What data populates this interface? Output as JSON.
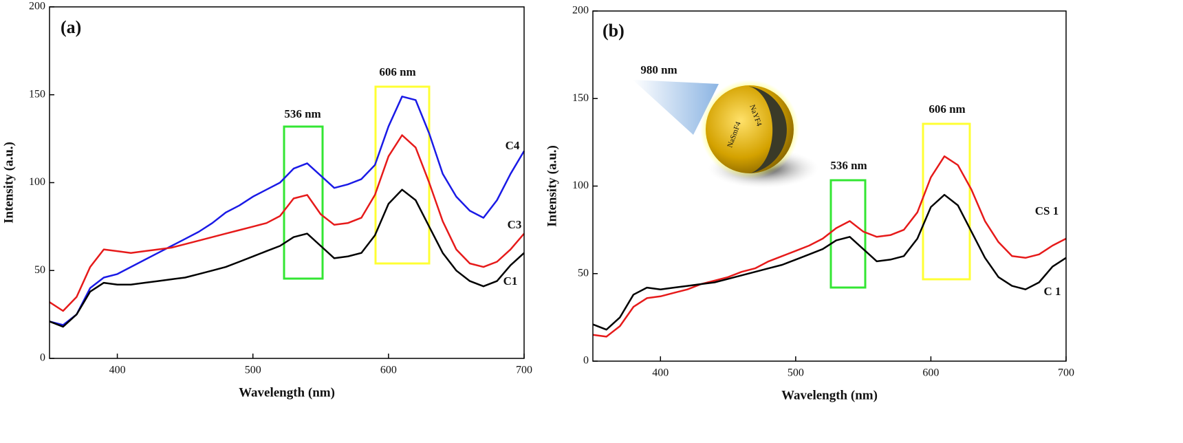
{
  "chart_data": [
    {
      "type": "line",
      "panel_label": "(a)",
      "xlabel": "Wavelength (nm)",
      "ylabel": "Intensity (a.u.)",
      "xlim": [
        350,
        700
      ],
      "ylim": [
        0,
        200
      ],
      "xticks": [
        400,
        500,
        600,
        700
      ],
      "yticks": [
        0,
        50,
        100,
        150,
        200
      ],
      "annotations": [
        "536 nm",
        "606 nm"
      ],
      "x": [
        350,
        360,
        370,
        380,
        390,
        400,
        410,
        420,
        430,
        440,
        450,
        460,
        470,
        480,
        490,
        500,
        510,
        520,
        530,
        540,
        550,
        560,
        570,
        580,
        590,
        600,
        610,
        620,
        630,
        640,
        650,
        660,
        670,
        680,
        690,
        700
      ],
      "series": [
        {
          "name": "C4",
          "color": "#1a1ae6",
          "values": [
            21,
            19,
            25,
            40,
            46,
            48,
            52,
            56,
            60,
            64,
            68,
            72,
            77,
            83,
            87,
            92,
            96,
            100,
            108,
            111,
            104,
            97,
            99,
            102,
            110,
            132,
            149,
            147,
            128,
            105,
            92,
            84,
            80,
            90,
            105,
            118
          ]
        },
        {
          "name": "C3",
          "color": "#e61a1a",
          "values": [
            32,
            27,
            35,
            52,
            62,
            61,
            60,
            61,
            62,
            63,
            65,
            67,
            69,
            71,
            73,
            75,
            77,
            81,
            91,
            93,
            82,
            76,
            77,
            80,
            93,
            115,
            127,
            120,
            100,
            78,
            62,
            54,
            52,
            55,
            62,
            71
          ]
        },
        {
          "name": "C1",
          "color": "#000000",
          "values": [
            21,
            18,
            25,
            38,
            43,
            42,
            42,
            43,
            44,
            45,
            46,
            48,
            50,
            52,
            55,
            58,
            61,
            64,
            69,
            71,
            64,
            57,
            58,
            60,
            70,
            88,
            96,
            90,
            75,
            60,
            50,
            44,
            41,
            44,
            53,
            60
          ]
        }
      ]
    },
    {
      "type": "line",
      "panel_label": "(b)",
      "xlabel": "Wavelength (nm)",
      "ylabel": "Intensity (a.u.)",
      "xlim": [
        350,
        700
      ],
      "ylim": [
        0,
        200
      ],
      "xticks": [
        400,
        500,
        600,
        700
      ],
      "yticks": [
        0,
        50,
        100,
        150,
        200
      ],
      "annotations": [
        "536 nm",
        "606 nm",
        "980 nm"
      ],
      "inset_labels": [
        "NaSmF4",
        "NaYF4"
      ],
      "x": [
        350,
        360,
        370,
        380,
        390,
        400,
        410,
        420,
        430,
        440,
        450,
        460,
        470,
        480,
        490,
        500,
        510,
        520,
        530,
        540,
        550,
        560,
        570,
        580,
        590,
        600,
        610,
        620,
        630,
        640,
        650,
        660,
        670,
        680,
        690,
        700
      ],
      "series": [
        {
          "name": "CS 1",
          "color": "#e61a1a",
          "values": [
            15,
            14,
            20,
            31,
            36,
            37,
            39,
            41,
            44,
            46,
            48,
            51,
            53,
            57,
            60,
            63,
            66,
            70,
            76,
            80,
            74,
            71,
            72,
            75,
            85,
            105,
            117,
            112,
            98,
            80,
            68,
            60,
            59,
            61,
            66,
            70
          ]
        },
        {
          "name": "C 1",
          "color": "#000000",
          "values": [
            21,
            18,
            25,
            38,
            42,
            41,
            42,
            43,
            44,
            45,
            47,
            49,
            51,
            53,
            55,
            58,
            61,
            64,
            69,
            71,
            64,
            57,
            58,
            60,
            70,
            88,
            95,
            89,
            74,
            59,
            48,
            43,
            41,
            45,
            54,
            59
          ]
        }
      ]
    }
  ]
}
